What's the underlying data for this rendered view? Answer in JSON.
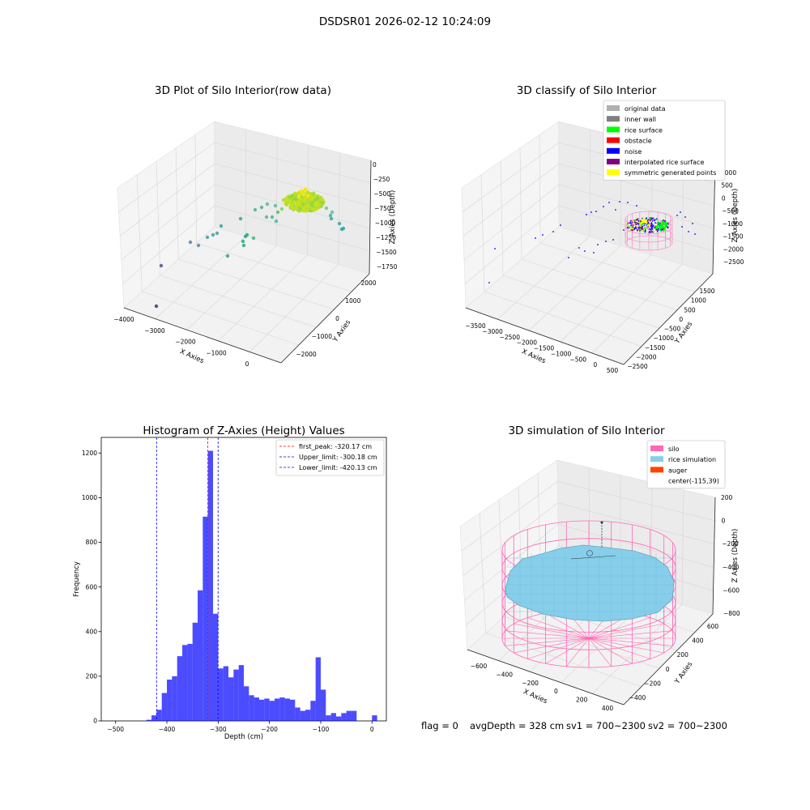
{
  "figure_title": "DSDSR01 2026-02-12 10:24:09",
  "footer": {
    "flag": "flag = 0",
    "avg_depth": "avgDepth = 328 cm",
    "sv1": "sv1 = 700~2300",
    "sv2": "sv2 = 700~2300"
  },
  "colors": {
    "hist_bar": "#0000ff",
    "first_peak": "#ff0000",
    "limits": "#0000ff",
    "silo": "#ff69b4",
    "rice_simulation": "#87ceeb",
    "auger": "#ff4500",
    "rice_surface": "#00ff00",
    "obstacle": "#ff0000",
    "noise": "#0000ff",
    "interpolated": "#800080",
    "symmetric": "#ffff00",
    "original": "#b0b0b0",
    "inner_wall": "#808080"
  },
  "chart_data": [
    {
      "type": "scatter",
      "title": "3D Plot of Silo Interior(row data)",
      "xlabel": "X Axies",
      "ylabel": "Y Axies",
      "zlabel": "Z Axies (Depth)",
      "x_ticks": [
        "−4000",
        "−3000",
        "−2000",
        "−1000",
        "0"
      ],
      "y_ticks": [
        "−2000",
        "−1000",
        "0",
        "1000",
        "2000"
      ],
      "z_ticks": [
        "0",
        "−250",
        "−500",
        "−750",
        "−1000",
        "−1250",
        "−1500",
        "−1750"
      ]
    },
    {
      "type": "scatter",
      "title": "3D classify of Silo Interior",
      "xlabel": "X Axies",
      "ylabel": "Y Axies",
      "zlabel": "Z Axies (Depth)",
      "x_ticks": [
        "−3500",
        "−3000",
        "−2500",
        "−2000",
        "−1500",
        "−1000",
        "−500",
        "0",
        "500"
      ],
      "y_ticks": [
        "−2500",
        "−2000",
        "−1500",
        "−1000",
        "−500",
        "0",
        "500",
        "1000",
        "1500"
      ],
      "z_ticks": [
        "1000",
        "500",
        "0",
        "−500",
        "−1000",
        "−1500",
        "−2000",
        "−2500"
      ],
      "legend": [
        {
          "label": "original data",
          "color": "#b0b0b0"
        },
        {
          "label": "inner wall",
          "color": "#808080"
        },
        {
          "label": "rice surface",
          "color": "#00ff00"
        },
        {
          "label": "obstacle",
          "color": "#ff0000"
        },
        {
          "label": "noise",
          "color": "#0000ff"
        },
        {
          "label": "interpolated rice surface",
          "color": "#800080"
        },
        {
          "label": "symmetric generated points",
          "color": "#ffff00"
        }
      ]
    },
    {
      "type": "bar",
      "title": "Histogram of Z-Axies (Height) Values",
      "xlabel": "Depth (cm)",
      "ylabel": "Frequency",
      "xlim": [
        -528,
        28
      ],
      "ylim": [
        0,
        1270
      ],
      "x_ticks": [
        -500,
        -400,
        -300,
        -200,
        -100,
        0
      ],
      "x_tick_labels": [
        "−500",
        "−400",
        "−300",
        "−200",
        "−100",
        "0"
      ],
      "y_ticks": [
        0,
        200,
        400,
        600,
        800,
        1000,
        1200
      ],
      "y_tick_labels": [
        "0",
        "200",
        "400",
        "600",
        "800",
        "1000",
        "1200"
      ],
      "bin_width": 10,
      "bin_starts": [
        -440,
        -430,
        -420,
        -410,
        -400,
        -390,
        -380,
        -370,
        -360,
        -350,
        -340,
        -330,
        -320,
        -310,
        -300,
        -290,
        -280,
        -270,
        -260,
        -250,
        -240,
        -230,
        -220,
        -210,
        -200,
        -190,
        -180,
        -170,
        -160,
        -150,
        -140,
        -130,
        -120,
        -110,
        -100,
        -90,
        -80,
        -70,
        -60,
        -50,
        -40,
        -30,
        -20,
        -10,
        0
      ],
      "values": [
        5,
        25,
        50,
        125,
        185,
        200,
        290,
        340,
        345,
        440,
        585,
        915,
        1210,
        480,
        235,
        245,
        195,
        230,
        250,
        155,
        115,
        105,
        95,
        100,
        90,
        100,
        105,
        100,
        95,
        60,
        45,
        50,
        90,
        285,
        140,
        25,
        35,
        20,
        35,
        45,
        45,
        0,
        0,
        0,
        25
      ],
      "lines": [
        {
          "label": "first_peak: -320.17 cm",
          "x": -320.17,
          "color": "#ff0000"
        },
        {
          "label": "Upper_limit: -300.18 cm",
          "x": -300.18,
          "color": "#0000ff"
        },
        {
          "label": "Lower_limit: -420.13 cm",
          "x": -420.13,
          "color": "#0000ff"
        }
      ]
    },
    {
      "type": "area",
      "title": "3D simulation of Silo Interior",
      "xlabel": "X Axies",
      "ylabel": "Y Axies",
      "zlabel": "Z Axies (Depth)",
      "x_ticks": [
        "−600",
        "−400",
        "−200",
        "0",
        "200",
        "400"
      ],
      "y_ticks": [
        "−400",
        "−200",
        "0",
        "200",
        "400",
        "600"
      ],
      "z_ticks": [
        "200",
        "0",
        "−200",
        "−400",
        "−600",
        "−800"
      ],
      "legend": [
        {
          "label": "silo",
          "color": "#ff69b4"
        },
        {
          "label": "rice simulation",
          "color": "#87ceeb"
        },
        {
          "label": "auger",
          "color": "#ff4500"
        },
        {
          "label": "center(-115,39)",
          "color": ""
        }
      ]
    }
  ]
}
